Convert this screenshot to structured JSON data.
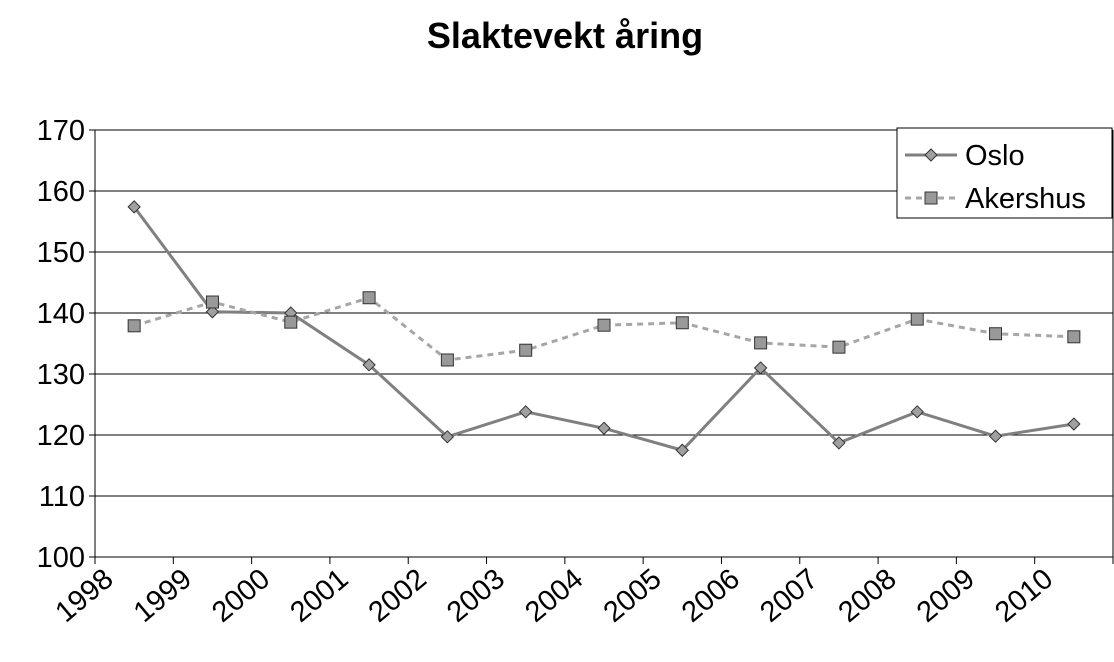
{
  "chart_data": {
    "type": "line",
    "title": "Slaktevekt åring",
    "categories": [
      "1998",
      "1999",
      "2000",
      "2001",
      "2002",
      "2003",
      "2004",
      "2005",
      "2006",
      "2007",
      "2008",
      "2009",
      "2010"
    ],
    "series": [
      {
        "name": "Oslo",
        "color": "#808080",
        "values": [
          157.4,
          140.2,
          140.0,
          131.5,
          119.7,
          123.8,
          121.1,
          117.5,
          131.0,
          118.7,
          123.8,
          119.8,
          121.8
        ]
      },
      {
        "name": "Akershus",
        "color": "#a6a6a6",
        "values": [
          137.9,
          141.8,
          138.5,
          142.5,
          132.3,
          133.9,
          138.0,
          138.4,
          135.1,
          134.4,
          139.0,
          136.6,
          136.1
        ]
      }
    ],
    "ylim": [
      100,
      170
    ],
    "yticks": [
      100,
      110,
      120,
      130,
      140,
      150,
      160,
      170
    ],
    "grid": true,
    "legend": "top-right"
  }
}
